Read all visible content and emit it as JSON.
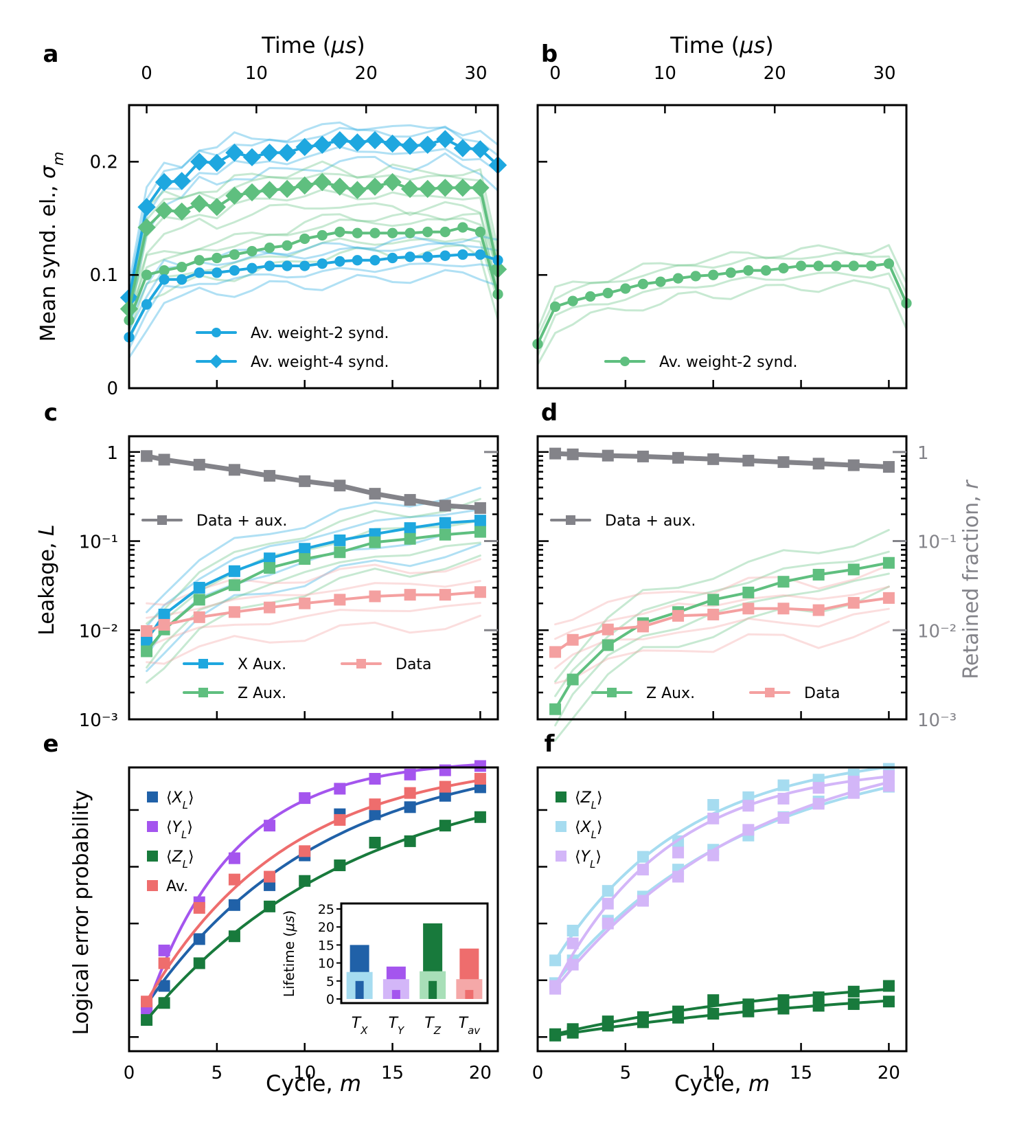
{
  "chart_data": [
    {
      "panel": "a",
      "type": "line",
      "top_axis": {
        "label": "Time (μs)",
        "ticks": [
          "0",
          "10",
          "20",
          "30"
        ],
        "values": [
          0,
          10,
          20,
          30
        ]
      },
      "ylabel": "Mean synd. el., σ_m",
      "ylim": [
        0,
        0.25
      ],
      "yticks": [
        0,
        0.1,
        0.2
      ],
      "ytick_labels": [
        "0",
        "0.1",
        "0.2"
      ],
      "xlim": [
        0,
        21
      ],
      "legend": [
        "Av. weight-2 synd.",
        "Av. weight-4 synd."
      ],
      "series": [
        {
          "name": "weight-4 blue",
          "color": "#1ea7df",
          "marker": "diamond",
          "x": [
            0,
            1,
            2,
            3,
            4,
            5,
            6,
            7,
            8,
            9,
            10,
            11,
            12,
            13,
            14,
            15,
            16,
            17,
            18,
            19,
            20,
            21
          ],
          "values": [
            0.08,
            0.16,
            0.182,
            0.183,
            0.2,
            0.199,
            0.208,
            0.204,
            0.208,
            0.208,
            0.213,
            0.215,
            0.219,
            0.217,
            0.219,
            0.216,
            0.214,
            0.215,
            0.22,
            0.212,
            0.211,
            0.197
          ]
        },
        {
          "name": "weight-4 green",
          "color": "#5fbf7f",
          "marker": "diamond",
          "x": [
            0,
            1,
            2,
            3,
            4,
            5,
            6,
            7,
            8,
            9,
            10,
            11,
            12,
            13,
            14,
            15,
            16,
            17,
            18,
            19,
            20,
            21
          ],
          "values": [
            0.07,
            0.142,
            0.157,
            0.156,
            0.163,
            0.16,
            0.17,
            0.173,
            0.175,
            0.176,
            0.179,
            0.182,
            0.178,
            0.175,
            0.178,
            0.182,
            0.176,
            0.176,
            0.177,
            0.177,
            0.177,
            0.105
          ]
        },
        {
          "name": "weight-2 green",
          "color": "#5fbf7f",
          "marker": "circle",
          "x": [
            0,
            1,
            2,
            3,
            4,
            5,
            6,
            7,
            8,
            9,
            10,
            11,
            12,
            13,
            14,
            15,
            16,
            17,
            18,
            19,
            20,
            21
          ],
          "values": [
            0.06,
            0.1,
            0.104,
            0.107,
            0.113,
            0.115,
            0.118,
            0.121,
            0.124,
            0.126,
            0.132,
            0.135,
            0.138,
            0.137,
            0.137,
            0.137,
            0.137,
            0.138,
            0.138,
            0.142,
            0.138,
            0.083
          ]
        },
        {
          "name": "weight-2 blue",
          "color": "#1ea7df",
          "marker": "circle",
          "x": [
            0,
            1,
            2,
            3,
            4,
            5,
            6,
            7,
            8,
            9,
            10,
            11,
            12,
            13,
            14,
            15,
            16,
            17,
            18,
            19,
            20,
            21
          ],
          "values": [
            0.045,
            0.074,
            0.096,
            0.096,
            0.102,
            0.102,
            0.104,
            0.106,
            0.108,
            0.108,
            0.108,
            0.11,
            0.112,
            0.113,
            0.113,
            0.115,
            0.116,
            0.116,
            0.117,
            0.118,
            0.118,
            0.113
          ]
        }
      ]
    },
    {
      "panel": "b",
      "type": "line",
      "top_axis": {
        "label": "Time (μs)",
        "ticks": [
          "0",
          "10",
          "20",
          "30"
        ],
        "values": [
          0,
          10,
          20,
          30
        ]
      },
      "ylim": [
        0,
        0.25
      ],
      "xlim": [
        0,
        21
      ],
      "legend": [
        "Av. weight-2 synd."
      ],
      "series": [
        {
          "name": "weight-2 green",
          "color": "#5fbf7f",
          "marker": "circle",
          "x": [
            0,
            1,
            2,
            3,
            4,
            5,
            6,
            7,
            8,
            9,
            10,
            11,
            12,
            13,
            14,
            15,
            16,
            17,
            18,
            19,
            20,
            21
          ],
          "values": [
            0.039,
            0.072,
            0.077,
            0.081,
            0.084,
            0.088,
            0.092,
            0.094,
            0.097,
            0.099,
            0.1,
            0.102,
            0.104,
            0.104,
            0.106,
            0.108,
            0.108,
            0.108,
            0.108,
            0.108,
            0.11,
            0.075
          ]
        }
      ]
    },
    {
      "panel": "c",
      "type": "line",
      "yscale": "log",
      "ylabel": "Leakage, L",
      "ylim": [
        0.001,
        1.5
      ],
      "xlim": [
        0,
        21
      ],
      "ytick_labels": [
        "10⁻³",
        "10⁻²",
        "10⁻¹",
        "1"
      ],
      "legend": [
        "Data + aux.",
        "X Aux.",
        "Z Aux.",
        "Data"
      ],
      "series": [
        {
          "name": "Data + aux.",
          "color": "#838389",
          "marker": "square",
          "x": [
            1,
            2,
            4,
            6,
            8,
            10,
            12,
            14,
            16,
            18,
            20
          ],
          "values": [
            0.9,
            0.82,
            0.72,
            0.63,
            0.54,
            0.47,
            0.42,
            0.34,
            0.29,
            0.25,
            0.235
          ]
        },
        {
          "name": "X Aux.",
          "color": "#1ea7df",
          "marker": "square",
          "x": [
            1,
            2,
            4,
            6,
            8,
            10,
            12,
            14,
            16,
            18,
            20
          ],
          "values": [
            0.0078,
            0.015,
            0.03,
            0.046,
            0.064,
            0.082,
            0.102,
            0.12,
            0.14,
            0.16,
            0.17
          ]
        },
        {
          "name": "Z Aux.",
          "color": "#5fbf7f",
          "marker": "square",
          "x": [
            1,
            2,
            4,
            6,
            8,
            10,
            12,
            14,
            16,
            18,
            20
          ],
          "values": [
            0.0058,
            0.0102,
            0.022,
            0.032,
            0.05,
            0.063,
            0.075,
            0.097,
            0.106,
            0.118,
            0.127
          ]
        },
        {
          "name": "Data",
          "color": "#f4a0a0",
          "marker": "square",
          "x": [
            1,
            2,
            4,
            6,
            8,
            10,
            12,
            14,
            16,
            18,
            20
          ],
          "values": [
            0.0098,
            0.0115,
            0.014,
            0.016,
            0.018,
            0.02,
            0.022,
            0.024,
            0.025,
            0.025,
            0.0268
          ]
        }
      ]
    },
    {
      "panel": "d",
      "type": "line",
      "yscale": "log",
      "ylabel_right": "Retained fraction, r",
      "ylim": [
        0.001,
        1.5
      ],
      "xlim": [
        0,
        21
      ],
      "ytick_labels_right": [
        "10⁻³",
        "10⁻²",
        "10⁻¹",
        "1"
      ],
      "legend": [
        "Data + aux.",
        "Z Aux.",
        "Data"
      ],
      "series": [
        {
          "name": "Data + aux.",
          "color": "#838389",
          "marker": "square",
          "x": [
            1,
            2,
            4,
            6,
            8,
            10,
            12,
            14,
            16,
            18,
            20
          ],
          "values": [
            0.96,
            0.94,
            0.91,
            0.89,
            0.86,
            0.83,
            0.8,
            0.77,
            0.74,
            0.71,
            0.68
          ]
        },
        {
          "name": "Z Aux.",
          "color": "#5fbf7f",
          "marker": "square",
          "x": [
            1,
            2,
            4,
            6,
            8,
            10,
            12,
            14,
            16,
            18,
            20
          ],
          "values": [
            0.0013,
            0.0028,
            0.0068,
            0.012,
            0.016,
            0.022,
            0.0265,
            0.035,
            0.042,
            0.048,
            0.057
          ]
        },
        {
          "name": "Data",
          "color": "#f4a0a0",
          "marker": "square",
          "x": [
            1,
            2,
            4,
            6,
            8,
            10,
            12,
            14,
            16,
            18,
            20
          ],
          "values": [
            0.0057,
            0.0078,
            0.0102,
            0.011,
            0.0145,
            0.015,
            0.0175,
            0.0175,
            0.0168,
            0.0203,
            0.023
          ]
        }
      ]
    },
    {
      "panel": "e",
      "type": "scatter",
      "ylabel": "Logical error probability",
      "xlabel": "Cycle, m",
      "xlim": [
        0,
        21
      ],
      "xticks": [
        0,
        5,
        10,
        15,
        20
      ],
      "ylim": [
        -0.05,
        0.95
      ],
      "ytick_values": [
        0,
        0.2,
        0.4,
        0.6,
        0.8
      ],
      "legend": [
        "⟨X_L⟩",
        "⟨Y_L⟩",
        "⟨Z_L⟩",
        "Av."
      ],
      "series": [
        {
          "name": "⟨X_L⟩",
          "color": "#2061a8",
          "x": [
            1,
            2,
            4,
            6,
            8,
            10,
            12,
            14,
            16,
            18,
            20
          ],
          "values": [
            0.115,
            0.18,
            0.345,
            0.465,
            0.535,
            0.64,
            0.785,
            0.785,
            0.81,
            0.85,
            0.88
          ]
        },
        {
          "name": "⟨Y_L⟩",
          "color": "#a455ee",
          "x": [
            1,
            2,
            4,
            6,
            8,
            10,
            12,
            14,
            16,
            18,
            20
          ],
          "values": [
            0.1,
            0.305,
            0.475,
            0.63,
            0.745,
            0.842,
            0.875,
            0.91,
            0.925,
            0.94,
            0.955
          ]
        },
        {
          "name": "⟨Z_L⟩",
          "color": "#187a3c",
          "x": [
            1,
            2,
            4,
            6,
            8,
            10,
            12,
            14,
            16,
            18,
            20
          ],
          "values": [
            0.06,
            0.12,
            0.26,
            0.355,
            0.46,
            0.55,
            0.605,
            0.685,
            0.69,
            0.745,
            0.775
          ]
        },
        {
          "name": "Av.",
          "color": "#ee6d6d",
          "x": [
            1,
            2,
            4,
            6,
            8,
            10,
            12,
            14,
            16,
            18,
            20
          ],
          "values": [
            0.125,
            0.26,
            0.455,
            0.555,
            0.565,
            0.655,
            0.765,
            0.82,
            0.86,
            0.882,
            0.91
          ]
        }
      ],
      "inset": {
        "type": "bar",
        "ylabel": "Lifetime (μs)",
        "ylim": [
          0,
          25
        ],
        "yticks": [
          "0",
          "5",
          "10",
          "15",
          "20",
          "25"
        ],
        "categories": [
          "T_X",
          "T_Y",
          "T_Z",
          "T_av"
        ],
        "colors": [
          "#2061a8",
          "#a455ee",
          "#187a3c",
          "#ee6d6d"
        ],
        "light_colors": [
          "#a6dcf0",
          "#d3b6f8",
          "#a8dfb8",
          "#f5a8a8"
        ],
        "main_values": [
          15,
          9,
          21,
          14
        ],
        "light_values": [
          7.5,
          5.5,
          7.7,
          5.5
        ],
        "inner_values": [
          5,
          2.5,
          5,
          2.5
        ]
      }
    },
    {
      "panel": "f",
      "type": "scatter",
      "xlabel": "Cycle, m",
      "xlim": [
        0,
        21
      ],
      "xticks": [
        0,
        5,
        10,
        15,
        20
      ],
      "ylim": [
        -0.05,
        0.95
      ],
      "legend": [
        "⟨Z_L⟩",
        "⟨X_L⟩",
        "⟨Y_L⟩"
      ],
      "series": [
        {
          "name": "⟨Z_L⟩",
          "color": "#187a3c",
          "x": [
            1,
            2,
            4,
            6,
            8,
            10,
            12,
            14,
            16,
            18,
            20
          ],
          "values": [
            0.005,
            0.015,
            0.04,
            0.052,
            0.068,
            0.082,
            0.09,
            0.1,
            0.11,
            0.116,
            0.125
          ]
        },
        {
          "name": "⟨Z_L⟩",
          "color": "#187a3c",
          "x": [
            1,
            2,
            4,
            6,
            8,
            10,
            12,
            14,
            16,
            18,
            20
          ],
          "values": [
            0.01,
            0.028,
            0.055,
            0.07,
            0.09,
            0.13,
            0.115,
            0.13,
            0.14,
            0.16,
            0.18
          ]
        },
        {
          "name": "⟨X_L⟩",
          "color": "#a6dcf0",
          "x": [
            1,
            2,
            4,
            6,
            8,
            10,
            12,
            14,
            16,
            18,
            20
          ],
          "values": [
            0.27,
            0.375,
            0.515,
            0.635,
            0.69,
            0.818,
            0.845,
            0.887,
            0.907,
            0.925,
            0.945
          ]
        },
        {
          "name": "⟨X_L⟩",
          "color": "#a6dcf0",
          "x": [
            1,
            2,
            4,
            6,
            8,
            10,
            12,
            14,
            16,
            18,
            20
          ],
          "values": [
            0.19,
            0.27,
            0.41,
            0.495,
            0.59,
            0.66,
            0.71,
            0.775,
            0.83,
            0.862,
            0.882
          ]
        },
        {
          "name": "⟨Y_L⟩",
          "color": "#d3b6f8",
          "x": [
            1,
            2,
            4,
            6,
            8,
            10,
            12,
            14,
            16,
            18,
            20
          ],
          "values": [
            0.18,
            0.33,
            0.47,
            0.59,
            0.65,
            0.77,
            0.815,
            0.84,
            0.878,
            0.9,
            0.92
          ]
        },
        {
          "name": "⟨Y_L⟩",
          "color": "#d3b6f8",
          "x": [
            1,
            2,
            4,
            6,
            8,
            10,
            12,
            14,
            16,
            18,
            20
          ],
          "values": [
            0.17,
            0.255,
            0.4,
            0.48,
            0.565,
            0.64,
            0.73,
            0.772,
            0.822,
            0.86,
            0.885
          ]
        }
      ]
    }
  ],
  "panel_labels": [
    "a",
    "b",
    "c",
    "d",
    "e",
    "f"
  ],
  "colors": {
    "blue": "#1ea7df",
    "green": "#5fbf7f",
    "gray": "#838389",
    "pink": "#f4a0a0",
    "dark_blue": "#2061a8",
    "purple": "#a455ee",
    "dark_green": "#187a3c",
    "red": "#ee6d6d",
    "light_blue": "#a6dcf0",
    "lavender": "#d3b6f8"
  }
}
